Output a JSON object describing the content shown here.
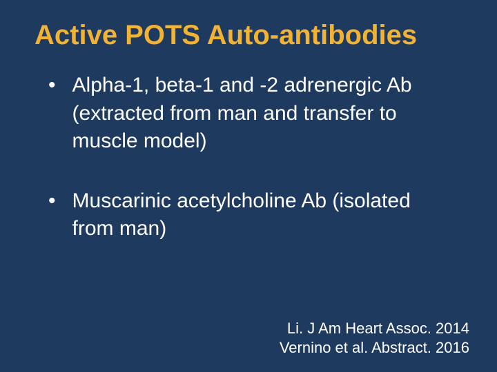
{
  "slide": {
    "background_color": "#1f3a5f",
    "title": {
      "text": "Active POTS Auto-antibodies",
      "color": "#f2b233",
      "fontsize": 40,
      "weight": "bold"
    },
    "bullets": [
      {
        "marker": "•",
        "text": "Alpha-1, beta-1 and -2 adrenergic Ab (extracted from man and transfer to muscle model)"
      },
      {
        "marker": "•",
        "text": "Muscarinic acetylcholine Ab (isolated from man)"
      }
    ],
    "bullet_style": {
      "color": "#ffffff",
      "fontsize": 30,
      "marker_color": "#ffffff"
    },
    "citations": [
      "Li. J Am Heart Assoc. 2014",
      "Vernino et al. Abstract. 2016"
    ],
    "citation_style": {
      "color": "#ffffff",
      "fontsize": 22,
      "align": "right"
    }
  }
}
